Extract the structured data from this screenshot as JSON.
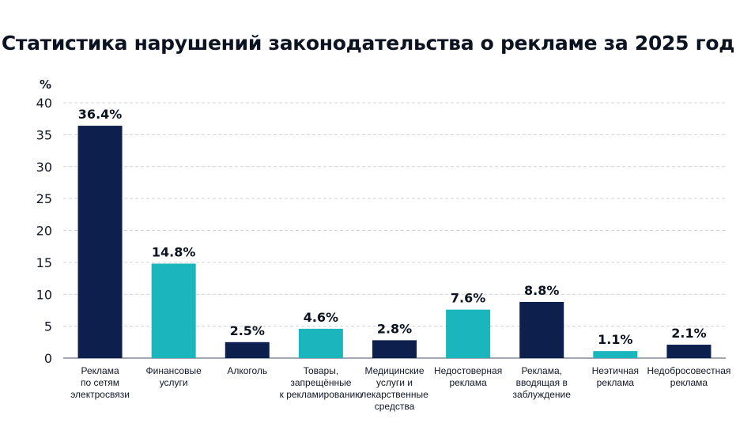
{
  "chart_data": {
    "type": "bar",
    "title": "Статистика нарушений законодательства о рекламе за 2025 год",
    "ylabel": "%",
    "xlabel": "",
    "ylim": [
      0,
      40
    ],
    "yticks": [
      0,
      5,
      10,
      15,
      20,
      25,
      30,
      35,
      40
    ],
    "grid": true,
    "categories": [
      "Реклама\nпо сетям\nэлектросвязи",
      "Финансовые\nуслуги",
      "Алкоголь",
      "Товары,\nзапрещённые\nк рекламированию",
      "Медицинские\nуслуги и\nлекарственные\nсредства",
      "Недостоверная\nреклама",
      "Реклама,\nвводящая в\nзаблуждение",
      "Неэтичная\nреклама",
      "Недобросовестная\nреклама"
    ],
    "values": [
      36.4,
      14.8,
      2.5,
      4.6,
      2.8,
      7.6,
      8.8,
      1.1,
      2.1
    ],
    "value_labels": [
      "36.4%",
      "14.8%",
      "2.5%",
      "4.6%",
      "2.8%",
      "7.6%",
      "8.8%",
      "1.1%",
      "2.1%"
    ],
    "bar_colors": [
      "#0d1f4c",
      "#1bb5be",
      "#0d1f4c",
      "#1bb5be",
      "#0d1f4c",
      "#1bb5be",
      "#0d1f4c",
      "#1bb5be",
      "#0d1f4c"
    ]
  }
}
